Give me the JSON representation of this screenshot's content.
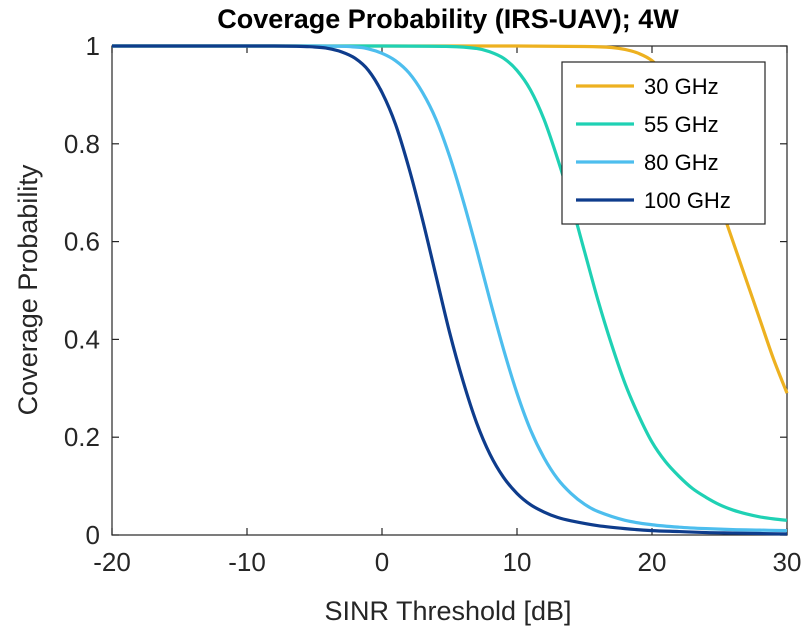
{
  "chart_data": {
    "type": "line",
    "title": "Coverage Probability (IRS-UAV); 4W",
    "xlabel": "SINR Threshold [dB]",
    "ylabel": "Coverage Probability",
    "xlim": [
      -20,
      30
    ],
    "ylim": [
      0,
      1
    ],
    "xticks": [
      -20,
      -10,
      0,
      10,
      20,
      30
    ],
    "yticks": [
      0,
      0.2,
      0.4,
      0.6,
      0.8,
      1
    ],
    "xtick_labels": [
      "-20",
      "-10",
      "0",
      "10",
      "20",
      "30"
    ],
    "ytick_labels": [
      "0",
      "0.2",
      "0.4",
      "0.6",
      "0.8",
      "1"
    ],
    "grid": false,
    "legend_position": "top-right",
    "series": [
      {
        "name": "30 GHz",
        "color": "#EDB120",
        "x": [
          -20,
          0,
          10,
          15,
          17,
          18,
          19,
          20,
          21,
          22,
          23,
          24,
          25,
          26,
          27,
          28,
          29,
          30
        ],
        "y": [
          1,
          1,
          1,
          0.999,
          0.997,
          0.993,
          0.985,
          0.97,
          0.94,
          0.895,
          0.83,
          0.76,
          0.68,
          0.6,
          0.52,
          0.44,
          0.36,
          0.29
        ]
      },
      {
        "name": "55 GHz",
        "color": "#1FD1B4",
        "x": [
          -20,
          0,
          5,
          7,
          8,
          9,
          10,
          11,
          12,
          13,
          14,
          15,
          16,
          17,
          18,
          19,
          20,
          21,
          22,
          23,
          24,
          25,
          26,
          27,
          28,
          29,
          30
        ],
        "y": [
          1,
          1,
          0.999,
          0.995,
          0.988,
          0.975,
          0.95,
          0.91,
          0.85,
          0.77,
          0.68,
          0.58,
          0.48,
          0.39,
          0.31,
          0.245,
          0.19,
          0.15,
          0.12,
          0.095,
          0.077,
          0.062,
          0.051,
          0.043,
          0.037,
          0.033,
          0.03
        ]
      },
      {
        "name": "80 GHz",
        "color": "#4DBEEE",
        "x": [
          -20,
          -5,
          -2,
          -1,
          0,
          1,
          2,
          3,
          4,
          5,
          6,
          7,
          8,
          9,
          10,
          11,
          12,
          13,
          14,
          15,
          16,
          18,
          20,
          22,
          24,
          26,
          28,
          30
        ],
        "y": [
          1,
          1,
          0.998,
          0.994,
          0.985,
          0.97,
          0.945,
          0.905,
          0.85,
          0.775,
          0.685,
          0.585,
          0.48,
          0.38,
          0.29,
          0.215,
          0.158,
          0.115,
          0.085,
          0.063,
          0.048,
          0.03,
          0.021,
          0.016,
          0.013,
          0.011,
          0.01,
          0.009
        ]
      },
      {
        "name": "100 GHz",
        "color": "#0E3C8C",
        "x": [
          -20,
          -8,
          -5,
          -4,
          -3,
          -2,
          -1,
          0,
          1,
          2,
          3,
          4,
          5,
          6,
          7,
          8,
          9,
          10,
          11,
          12,
          13,
          14,
          16,
          18,
          20,
          22,
          24,
          26,
          28,
          30
        ],
        "y": [
          1,
          1,
          0.998,
          0.995,
          0.988,
          0.975,
          0.95,
          0.905,
          0.84,
          0.75,
          0.645,
          0.53,
          0.415,
          0.315,
          0.23,
          0.165,
          0.118,
          0.085,
          0.062,
          0.047,
          0.036,
          0.029,
          0.019,
          0.013,
          0.009,
          0.007,
          0.005,
          0.004,
          0.003,
          0.002
        ]
      }
    ]
  }
}
